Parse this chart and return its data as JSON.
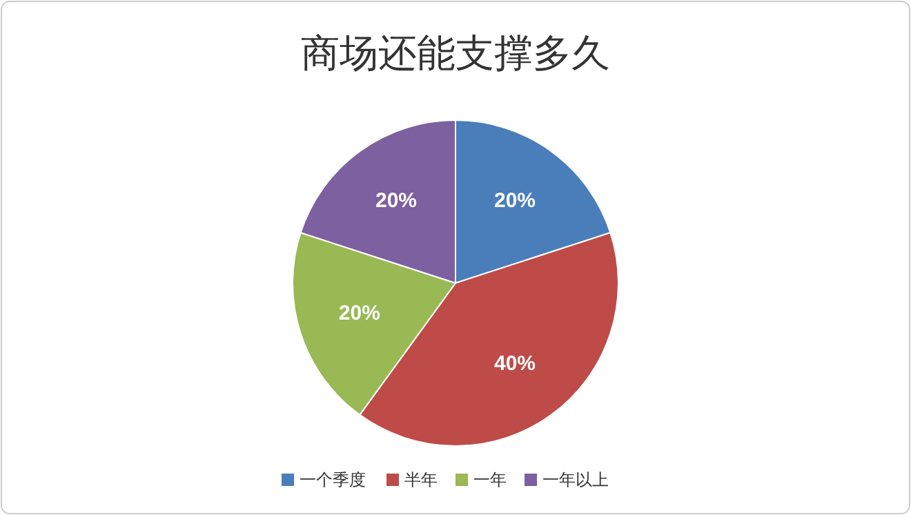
{
  "chart_data": {
    "type": "pie",
    "title": "商场还能支撑多久",
    "categories": [
      "一个季度",
      "半年",
      "一年",
      "一年以上"
    ],
    "values": [
      20,
      40,
      20,
      20
    ],
    "value_labels": [
      "20%",
      "40%",
      "20%",
      "20%"
    ],
    "colors": [
      "#4a7ebb",
      "#be4b48",
      "#98b954",
      "#7d60a0"
    ],
    "legend": "bottom"
  }
}
